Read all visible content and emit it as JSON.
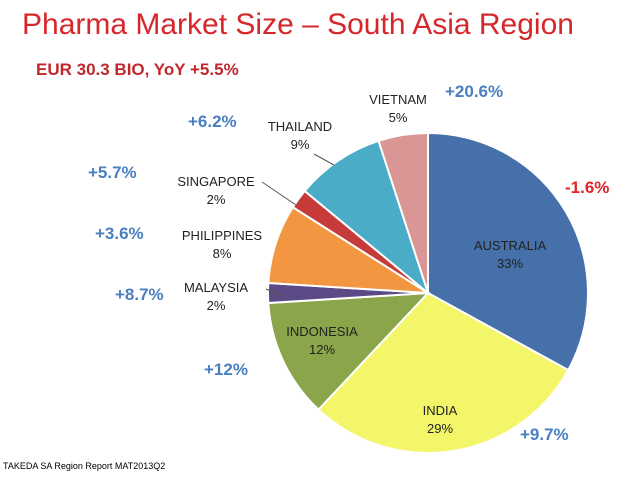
{
  "header": {
    "title": "Pharma Market Size – South Asia Region",
    "subtitle": "EUR  30.3 BIO, YoY +5.5%"
  },
  "footer": {
    "source": "TAKEDA SA Region Report MAT2013Q2"
  },
  "colors": {
    "title": "#d7272b",
    "growth_positive": "#4a7fc0",
    "growth_negative": "#e02626"
  },
  "chart_data": {
    "type": "pie",
    "title": "Pharma Market Size – South Asia Region",
    "subtitle": "EUR  30.3 BIO, YoY +5.5%",
    "slices": [
      {
        "label": "AUSTRALIA",
        "share_label": "33%",
        "value": 33,
        "growth": "-1.6%",
        "color": "#4670a9"
      },
      {
        "label": "INDIA",
        "share_label": "29%",
        "value": 29,
        "growth": "+9.7%",
        "color": "#f4f66a"
      },
      {
        "label": "INDONESIA",
        "share_label": "12%",
        "value": 12,
        "growth": "+12%",
        "color": "#8aa54a"
      },
      {
        "label": "MALAYSIA",
        "share_label": "2%",
        "value": 2,
        "growth": "+8.7%",
        "color": "#5c4a86"
      },
      {
        "label": "PHILIPPINES",
        "share_label": "8%",
        "value": 8,
        "growth": "+3.6%",
        "color": "#f29641"
      },
      {
        "label": "SINGAPORE",
        "share_label": "2%",
        "value": 2,
        "growth": "+5.7%",
        "color": "#c63a3a"
      },
      {
        "label": "THAILAND",
        "share_label": "9%",
        "value": 9,
        "growth": "+6.2%",
        "color": "#4aacc6"
      },
      {
        "label": "VIETNAM",
        "share_label": "5%",
        "value": 5,
        "growth": "+20.6%",
        "color": "#d99694"
      }
    ],
    "legend": "none"
  }
}
